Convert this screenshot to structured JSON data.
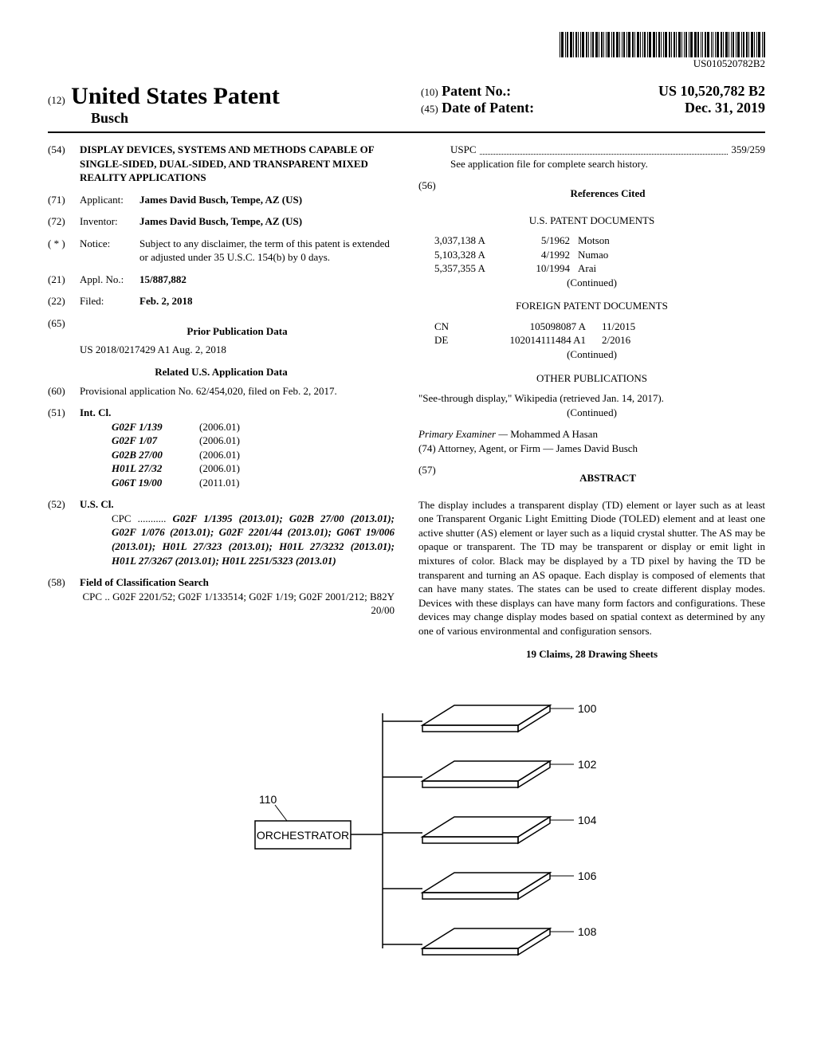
{
  "barcode_label": "US010520782B2",
  "header": {
    "doc_type_prefix": "(12)",
    "doc_type": "United States Patent",
    "inventor_header": "Busch",
    "patent_no_prefix": "(10)",
    "patent_no_label": "Patent No.:",
    "patent_no_value": "US 10,520,782 B2",
    "date_prefix": "(45)",
    "date_label": "Date of Patent:",
    "date_value": "Dec. 31, 2019"
  },
  "left": {
    "title_num": "(54)",
    "title": "DISPLAY DEVICES, SYSTEMS AND METHODS CAPABLE OF SINGLE-SIDED, DUAL-SIDED, AND TRANSPARENT MIXED REALITY APPLICATIONS",
    "applicant_num": "(71)",
    "applicant_label": "Applicant:",
    "applicant_value": "James David Busch, Tempe, AZ (US)",
    "inventor_num": "(72)",
    "inventor_label": "Inventor:",
    "inventor_value": "James David Busch, Tempe, AZ (US)",
    "notice_num": "( * )",
    "notice_label": "Notice:",
    "notice_value": "Subject to any disclaimer, the term of this patent is extended or adjusted under 35 U.S.C. 154(b) by 0 days.",
    "appl_num": "(21)",
    "appl_label": "Appl. No.:",
    "appl_value": "15/887,882",
    "filed_num": "(22)",
    "filed_label": "Filed:",
    "filed_value": "Feb. 2, 2018",
    "prior_pub_num": "(65)",
    "prior_pub_heading": "Prior Publication Data",
    "prior_pub_value": "US 2018/0217429 A1      Aug. 2, 2018",
    "related_heading": "Related U.S. Application Data",
    "provisional_num": "(60)",
    "provisional_value": "Provisional application No. 62/454,020, filed on Feb. 2, 2017.",
    "intcl_num": "(51)",
    "intcl_label": "Int. Cl.",
    "intcl": [
      {
        "code": "G02F 1/139",
        "year": "(2006.01)"
      },
      {
        "code": "G02F 1/07",
        "year": "(2006.01)"
      },
      {
        "code": "G02B 27/00",
        "year": "(2006.01)"
      },
      {
        "code": "H01L 27/32",
        "year": "(2006.01)"
      },
      {
        "code": "G06T 19/00",
        "year": "(2011.01)"
      }
    ],
    "uscl_num": "(52)",
    "uscl_label": "U.S. Cl.",
    "cpc_prefix": "CPC ...........",
    "cpc_value": " G02F 1/1395 (2013.01); G02B 27/00 (2013.01); G02F 1/076 (2013.01); G02F 2201/44 (2013.01); G06T 19/006 (2013.01); H01L 27/323 (2013.01); H01L 27/3232 (2013.01); H01L 27/3267 (2013.01); H01L 2251/5323 (2013.01)",
    "field_num": "(58)",
    "field_label": "Field of Classification Search",
    "field_cpc": "CPC .. G02F 2201/52; G02F 1/133514; G02F 1/19; G02F 2001/212; B82Y 20/00"
  },
  "right": {
    "uspc_label": "USPC",
    "uspc_value": "359/259",
    "uspc_note": "See application file for complete search history.",
    "refs_num": "(56)",
    "refs_heading": "References Cited",
    "us_docs_heading": "U.S. PATENT DOCUMENTS",
    "us_docs": [
      {
        "no": "3,037,138 A",
        "date": "5/1962",
        "name": "Motson"
      },
      {
        "no": "5,103,328 A",
        "date": "4/1992",
        "name": "Numao"
      },
      {
        "no": "5,357,355 A",
        "date": "10/1994",
        "name": "Arai"
      }
    ],
    "continued": "(Continued)",
    "foreign_heading": "FOREIGN PATENT DOCUMENTS",
    "foreign_docs": [
      {
        "cc": "CN",
        "no": "105098087 A",
        "date": "11/2015"
      },
      {
        "cc": "DE",
        "no": "102014111484 A1",
        "date": "2/2016"
      }
    ],
    "other_pub_heading": "OTHER PUBLICATIONS",
    "other_pub_value": "\"See-through display,\" Wikipedia (retrieved Jan. 14, 2017).",
    "examiner_label": "Primary Examiner —",
    "examiner_value": "Mohammed A Hasan",
    "attorney_label": "(74) Attorney, Agent, or Firm —",
    "attorney_value": "James David Busch",
    "abstract_num": "(57)",
    "abstract_heading": "ABSTRACT",
    "abstract_text": "The display includes a transparent display (TD) element or layer such as at least one Transparent Organic Light Emitting Diode (TOLED) element and at least one active shutter (AS) element or layer such as a liquid crystal shutter. The AS may be opaque or transparent. The TD may be transparent or display or emit light in mixtures of color. Black may be displayed by a TD pixel by having the TD be transparent and turning an AS opaque. Each display is composed of elements that can have many states. The states can be used to create different display modes. Devices with these displays can have many form factors and configurations. These devices may change display modes based on spatial context as determined by any one of various environmental and configuration sensors.",
    "claims_line": "19 Claims, 28 Drawing Sheets"
  },
  "figure": {
    "orchestrator_label": "ORCHESTRATOR",
    "refs": {
      "r100": "100",
      "r102": "102",
      "r104": "104",
      "r106": "106",
      "r108": "108",
      "r110": "110"
    }
  }
}
